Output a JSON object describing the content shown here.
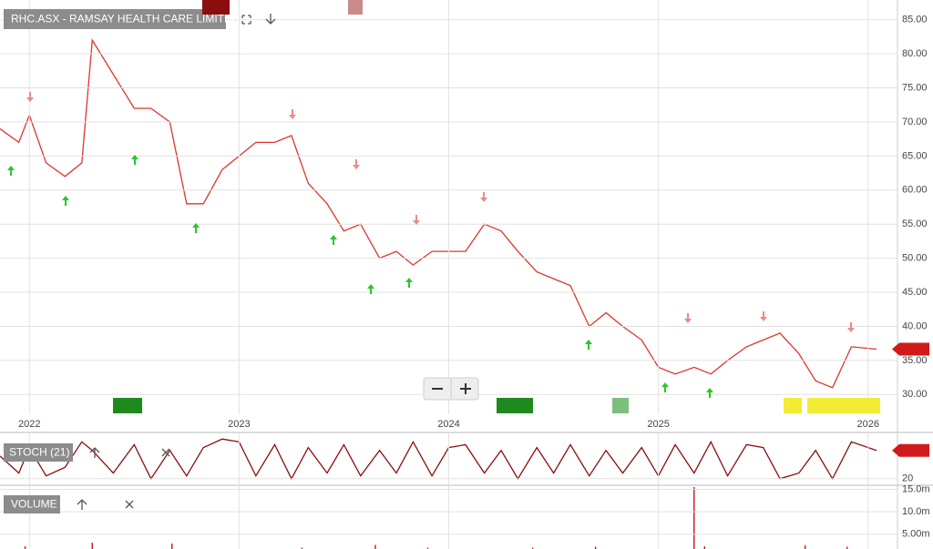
{
  "chart_data": [
    {
      "type": "line",
      "title": "RHC.ASX - RAMSAY HEALTH CARE LIMITED",
      "x": [
        2021.86,
        2021.95,
        2022.0,
        2022.08,
        2022.17,
        2022.25,
        2022.3,
        2022.4,
        2022.5,
        2022.58,
        2022.67,
        2022.75,
        2022.83,
        2022.92,
        2023.0,
        2023.08,
        2023.17,
        2023.25,
        2023.33,
        2023.42,
        2023.5,
        2023.58,
        2023.67,
        2023.75,
        2023.83,
        2023.92,
        2024.0,
        2024.08,
        2024.17,
        2024.25,
        2024.33,
        2024.42,
        2024.5,
        2024.58,
        2024.67,
        2024.75,
        2024.83,
        2024.92,
        2025.0,
        2025.08,
        2025.17,
        2025.25,
        2025.33,
        2025.42,
        2025.5,
        2025.58,
        2025.67,
        2025.75,
        2025.83,
        2025.92,
        2026.04
      ],
      "values": [
        69,
        67,
        71,
        64,
        62,
        64,
        82,
        77,
        72,
        72,
        70,
        58,
        58,
        63,
        65,
        67,
        67,
        68,
        61,
        58,
        54,
        55,
        50,
        51,
        49,
        51,
        51,
        51,
        55,
        54,
        51,
        48,
        47,
        46,
        40,
        42,
        40,
        38,
        34,
        33,
        34,
        33,
        35,
        37,
        38,
        39,
        36,
        32,
        31,
        37,
        36.66
      ],
      "color": "#e0342b",
      "xlim": [
        2021.86,
        2026.14
      ],
      "xticks": [
        2022,
        2023,
        2024,
        2025,
        2026
      ],
      "ylim": [
        27.1,
        87.9
      ],
      "yticks": [
        {
          "value": 85,
          "label": "85.00"
        },
        {
          "value": 80,
          "label": "80.00"
        },
        {
          "value": 75,
          "label": "75.00"
        },
        {
          "value": 70,
          "label": "70.00"
        },
        {
          "value": 65,
          "label": "65.00"
        },
        {
          "value": 60,
          "label": "60.00"
        },
        {
          "value": 55,
          "label": "55.00"
        },
        {
          "value": 50,
          "label": "50.00"
        },
        {
          "value": 45,
          "label": "45.00"
        },
        {
          "value": 40,
          "label": "40.00"
        },
        {
          "value": 35,
          "label": "35.00"
        },
        {
          "value": 30,
          "label": "30.00"
        }
      ],
      "grid": true
    },
    {
      "type": "line",
      "title": "STOCH (21)",
      "x": [
        2021.86,
        2021.95,
        2022.0,
        2022.08,
        2022.17,
        2022.25,
        2022.3,
        2022.4,
        2022.5,
        2022.58,
        2022.67,
        2022.75,
        2022.83,
        2022.92,
        2023.0,
        2023.08,
        2023.17,
        2023.25,
        2023.33,
        2023.42,
        2023.5,
        2023.58,
        2023.67,
        2023.75,
        2023.83,
        2023.92,
        2024.0,
        2024.08,
        2024.17,
        2024.25,
        2024.33,
        2024.42,
        2024.5,
        2024.58,
        2024.67,
        2024.75,
        2024.83,
        2024.92,
        2025.0,
        2025.08,
        2025.17,
        2025.25,
        2025.33,
        2025.42,
        2025.5,
        2025.58,
        2025.67,
        2025.75,
        2025.83,
        2025.92,
        2026.04
      ],
      "values": [
        60,
        30,
        75,
        25,
        40,
        85,
        70,
        30,
        80,
        20,
        70,
        25,
        75,
        90,
        85,
        25,
        80,
        20,
        75,
        30,
        80,
        25,
        70,
        30,
        85,
        25,
        75,
        80,
        30,
        70,
        20,
        75,
        30,
        80,
        25,
        70,
        30,
        75,
        25,
        80,
        30,
        85,
        25,
        80,
        75,
        20,
        30,
        70,
        20,
        85,
        69.88
      ],
      "color": "#8b0d0d",
      "xlim": [
        2021.86,
        2026.14
      ],
      "ylim": [
        10,
        100
      ],
      "yticks": [
        20
      ],
      "grid": true
    },
    {
      "type": "bar",
      "title": "VOLUME",
      "x": [
        2021.98,
        2022.3,
        2022.68,
        2023.3,
        2023.65,
        2023.9,
        2024.4,
        2024.7,
        2025.17,
        2025.22,
        2025.7,
        2025.9
      ],
      "values": [
        2300000,
        3100000,
        2900000,
        2000000,
        2600000,
        2000000,
        2000000,
        2200000,
        15500000,
        2300000,
        2500000,
        2200000
      ],
      "color": "#c0161b",
      "xlim": [
        2021.86,
        2026.14
      ],
      "ylim": [
        1700000,
        15700000
      ],
      "yticks": [
        {
          "value": 15000000,
          "label": "15.0m"
        },
        {
          "value": 10000000,
          "label": "10.0m"
        },
        {
          "value": 5000000,
          "label": "5.00m"
        }
      ],
      "grid": true
    }
  ]
}
